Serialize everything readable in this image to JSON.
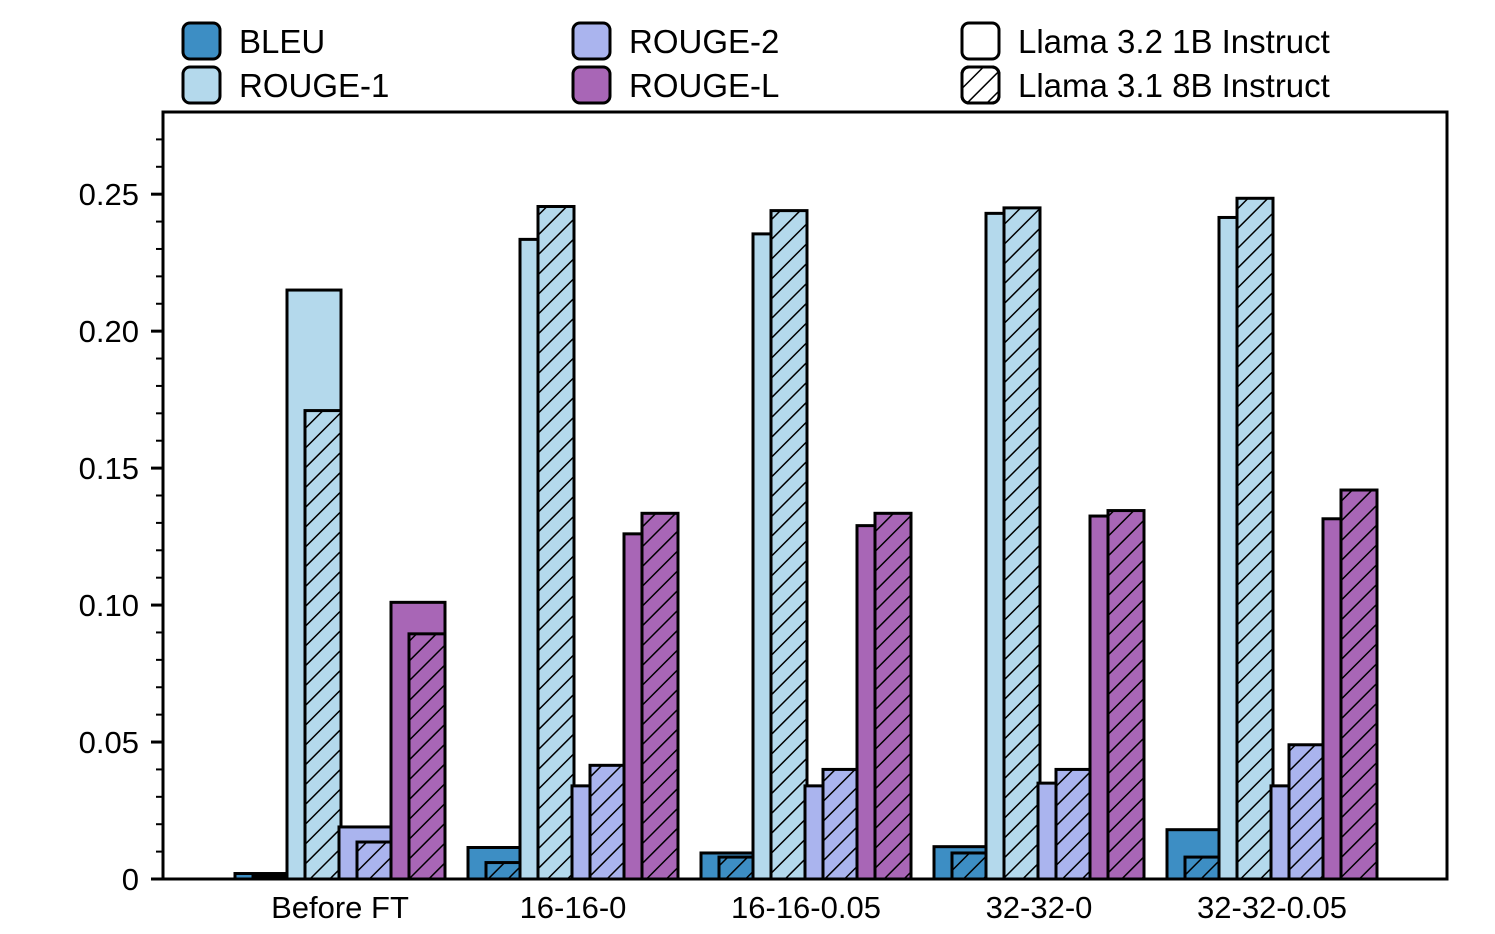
{
  "chart_data": {
    "type": "bar",
    "title": "",
    "xlabel": "",
    "ylabel": "",
    "ylim": [
      0,
      0.28
    ],
    "yticks": [
      0,
      0.05,
      0.1,
      0.15,
      0.2,
      0.25
    ],
    "ytick_labels": [
      "0",
      "0.05",
      "0.10",
      "0.15",
      "0.20",
      "0.25"
    ],
    "categories": [
      "Before FT",
      "16-16-0",
      "16-16-0.05",
      "32-32-0",
      "32-32-0.05"
    ],
    "metrics": [
      {
        "name": "BLEU",
        "color": "#3d8ec4"
      },
      {
        "name": "ROUGE-1",
        "color": "#b4d9ec"
      },
      {
        "name": "ROUGE-2",
        "color": "#aab4ee"
      },
      {
        "name": "ROUGE-L",
        "color": "#a866b6"
      }
    ],
    "models": [
      {
        "name": "Llama 3.2 1B Instruct",
        "pattern": "solid"
      },
      {
        "name": "Llama 3.1 8B Instruct",
        "pattern": "hatched"
      }
    ],
    "series": [
      {
        "metric": "BLEU",
        "model": "Llama 3.2 1B Instruct",
        "values": [
          0.002,
          0.0115,
          0.0095,
          0.0118,
          0.018
        ]
      },
      {
        "metric": "BLEU",
        "model": "Llama 3.1 8B Instruct",
        "values": [
          0.001,
          0.006,
          0.008,
          0.0095,
          0.008
        ]
      },
      {
        "metric": "ROUGE-1",
        "model": "Llama 3.2 1B Instruct",
        "values": [
          0.215,
          0.2335,
          0.2355,
          0.243,
          0.2415
        ]
      },
      {
        "metric": "ROUGE-1",
        "model": "Llama 3.1 8B Instruct",
        "values": [
          0.171,
          0.2455,
          0.244,
          0.245,
          0.2485
        ]
      },
      {
        "metric": "ROUGE-2",
        "model": "Llama 3.2 1B Instruct",
        "values": [
          0.019,
          0.034,
          0.034,
          0.035,
          0.034
        ]
      },
      {
        "metric": "ROUGE-2",
        "model": "Llama 3.1 8B Instruct",
        "values": [
          0.0135,
          0.0415,
          0.04,
          0.04,
          0.049
        ]
      },
      {
        "metric": "ROUGE-L",
        "model": "Llama 3.2 1B Instruct",
        "values": [
          0.101,
          0.126,
          0.129,
          0.1325,
          0.1315
        ]
      },
      {
        "metric": "ROUGE-L",
        "model": "Llama 3.1 8B Instruct",
        "values": [
          0.0895,
          0.1335,
          0.1335,
          0.1345,
          0.142
        ]
      }
    ],
    "legend": {
      "placement": "top, above plot, three columns",
      "entries": [
        "BLEU",
        "ROUGE-1",
        "ROUGE-2",
        "ROUGE-L",
        "Llama 3.2 1B Instruct",
        "Llama 3.1 8B Instruct"
      ]
    },
    "grid": false
  }
}
